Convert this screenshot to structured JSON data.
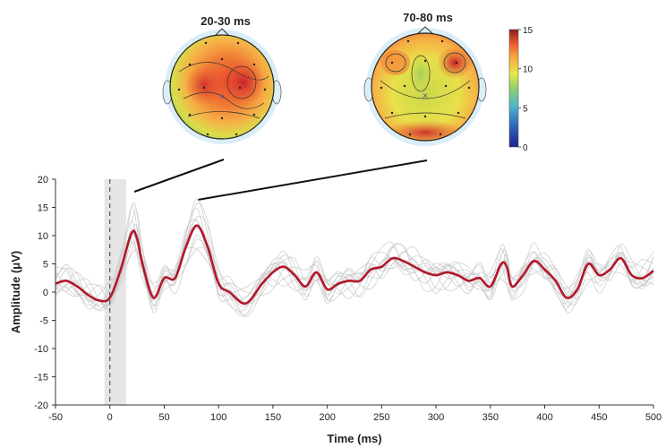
{
  "chart_data": {
    "type": "line",
    "xlabel": "Time (ms)",
    "ylabel": "Amplitude (μV)",
    "xlim": [
      -50,
      500
    ],
    "ylim": [
      -20,
      20
    ],
    "x_ticks": [
      -50,
      0,
      50,
      100,
      150,
      200,
      250,
      300,
      350,
      400,
      450,
      500
    ],
    "y_ticks": [
      20,
      15,
      10,
      5,
      0,
      -5,
      -10,
      -15,
      -20
    ],
    "stimulus_onset_ms": 0,
    "shaded_window_ms": [
      -5,
      15
    ],
    "grid": false,
    "mean_color": "#b2182b",
    "trial_color": "#c8c8c8",
    "mean_series": {
      "x": [
        -50,
        -40,
        -30,
        -20,
        -10,
        0,
        10,
        20,
        25,
        30,
        40,
        50,
        60,
        70,
        80,
        90,
        100,
        110,
        125,
        140,
        150,
        160,
        170,
        180,
        190,
        200,
        210,
        220,
        230,
        240,
        250,
        260,
        270,
        280,
        290,
        300,
        310,
        320,
        330,
        340,
        350,
        360,
        365,
        370,
        380,
        390,
        400,
        410,
        420,
        430,
        440,
        450,
        460,
        470,
        480,
        490,
        500
      ],
      "y": [
        1.5,
        2.0,
        1.0,
        -0.5,
        -1.5,
        -1.0,
        4.0,
        10.5,
        9.5,
        5.0,
        -1.0,
        2.5,
        2.5,
        8.0,
        11.8,
        8.0,
        1.5,
        0.0,
        -2.0,
        1.5,
        3.5,
        4.5,
        3.0,
        1.0,
        3.5,
        0.5,
        1.5,
        2.0,
        2.0,
        4.0,
        4.5,
        6.0,
        5.5,
        4.5,
        3.5,
        3.0,
        3.5,
        3.0,
        2.0,
        2.5,
        1.0,
        5.0,
        4.5,
        1.0,
        3.0,
        5.5,
        4.0,
        2.0,
        -1.0,
        0.5,
        5.0,
        3.0,
        4.0,
        6.0,
        3.0,
        2.5,
        3.8
      ]
    },
    "trial_count": 12,
    "topomaps": [
      {
        "title": "20-30 ms",
        "links_to_time_ms": 25
      },
      {
        "title": "70-80 ms",
        "links_to_time_ms": 80
      }
    ],
    "colorbar": {
      "min": 0,
      "max": 15,
      "ticks": [
        15,
        10,
        5,
        0
      ]
    }
  }
}
